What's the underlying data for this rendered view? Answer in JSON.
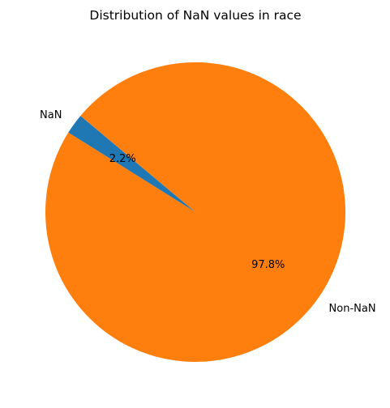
{
  "chart_data": {
    "type": "pie",
    "title": "Distribution of NaN values in race",
    "slices": [
      {
        "label": "NaN",
        "value": 2.2,
        "pct_label": "2.2%",
        "color": "#1f77b4"
      },
      {
        "label": "Non-NaN",
        "value": 97.8,
        "pct_label": "97.8%",
        "color": "#ff7f0e"
      }
    ],
    "start_angle_deg": 140,
    "direction": "counterclockwise",
    "legend": "none"
  }
}
